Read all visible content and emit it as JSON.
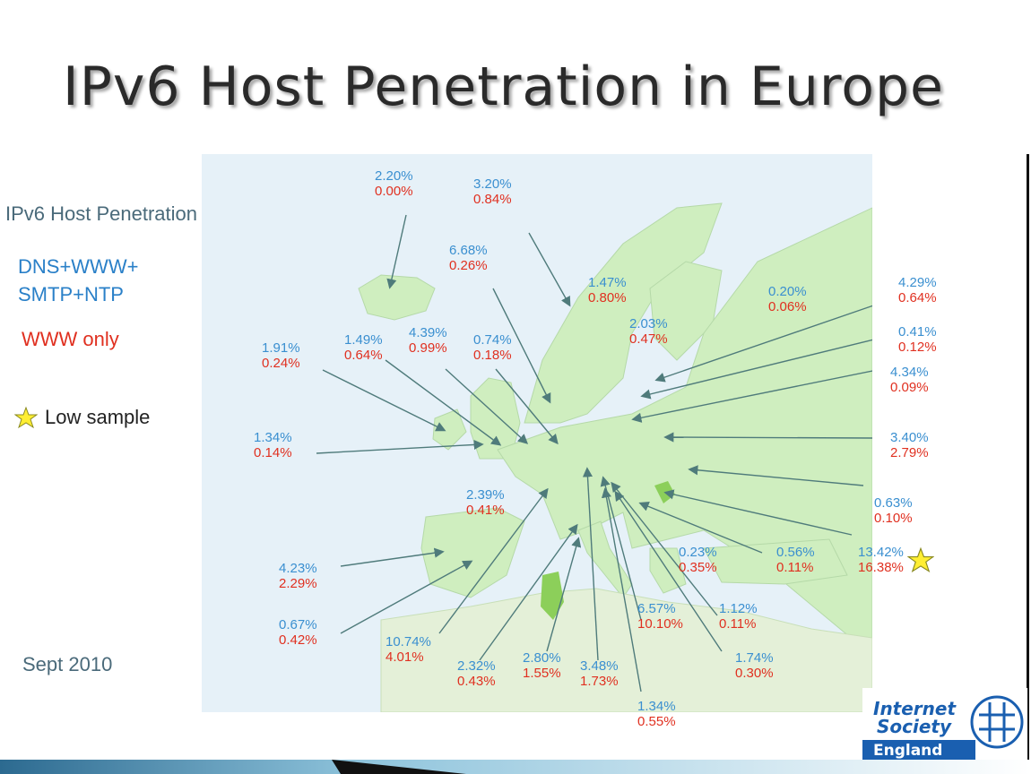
{
  "title": "IPv6 Host Penetration in Europe",
  "legend": {
    "title": "IPv6 Host Penetration",
    "blue_line1": "DNS+WWW+",
    "blue_line2": "SMTP+NTP",
    "red_label": "WWW only",
    "star_label": "Low sample"
  },
  "date": "Sept 2010",
  "colors": {
    "blue": "#3a8fd0",
    "red": "#e03020",
    "land": "#cfeebf",
    "sea": "#e6f1f8",
    "arrow": "#4f7b7b",
    "star": "#ffee33"
  },
  "logo": {
    "line1": "Internet",
    "line2": "Society",
    "line3": "England"
  },
  "labels": [
    {
      "blue": "2.20%",
      "red": "0.00%"
    },
    {
      "blue": "3.20%",
      "red": "0.84%"
    },
    {
      "blue": "6.68%",
      "red": "0.26%"
    },
    {
      "blue": "1.47%",
      "red": "0.80%"
    },
    {
      "blue": "0.20%",
      "red": "0.06%"
    },
    {
      "blue": "4.29%",
      "red": "0.64%"
    },
    {
      "blue": "2.03%",
      "red": "0.47%"
    },
    {
      "blue": "0.41%",
      "red": "0.12%"
    },
    {
      "blue": "1.91%",
      "red": "0.24%"
    },
    {
      "blue": "1.49%",
      "red": "0.64%"
    },
    {
      "blue": "4.39%",
      "red": "0.99%"
    },
    {
      "blue": "0.74%",
      "red": "0.18%"
    },
    {
      "blue": "4.34%",
      "red": "0.09%"
    },
    {
      "blue": "1.34%",
      "red": "0.14%"
    },
    {
      "blue": "3.40%",
      "red": "2.79%"
    },
    {
      "blue": "2.39%",
      "red": "0.41%"
    },
    {
      "blue": "0.63%",
      "red": "0.10%"
    },
    {
      "blue": "0.23%",
      "red": "0.35%"
    },
    {
      "blue": "0.56%",
      "red": "0.11%"
    },
    {
      "blue": "13.42%",
      "red": "16.38%",
      "low_sample": true
    },
    {
      "blue": "4.23%",
      "red": "2.29%"
    },
    {
      "blue": "0.67%",
      "red": "0.42%"
    },
    {
      "blue": "6.57%",
      "red": "10.10%"
    },
    {
      "blue": "1.12%",
      "red": "0.11%"
    },
    {
      "blue": "10.74%",
      "red": "4.01%"
    },
    {
      "blue": "1.74%",
      "red": "0.30%"
    },
    {
      "blue": "2.32%",
      "red": "0.43%"
    },
    {
      "blue": "2.80%",
      "red": "1.55%"
    },
    {
      "blue": "3.48%",
      "red": "1.73%"
    },
    {
      "blue": "1.34%",
      "red": "0.55%"
    }
  ]
}
